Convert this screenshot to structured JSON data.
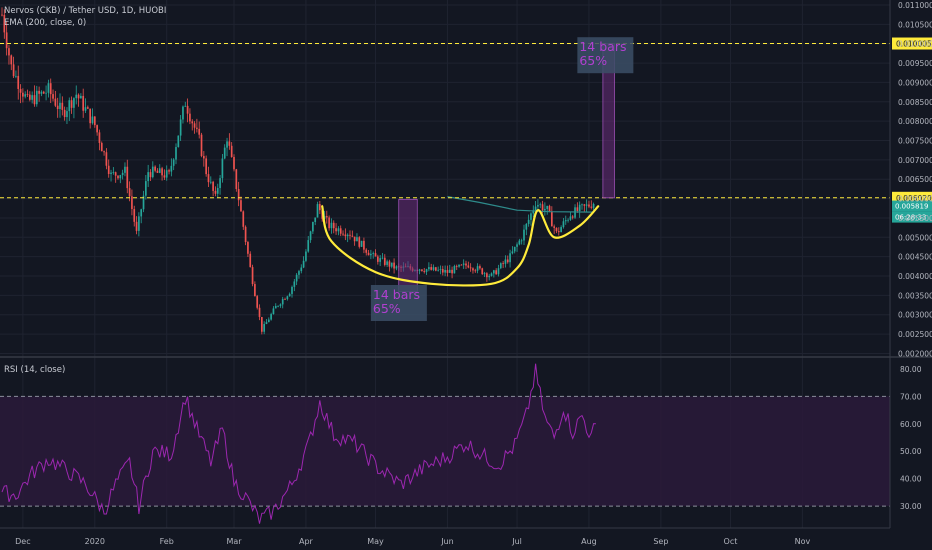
{
  "legend": {
    "symbol": "Nervos (CKB) / Tether USD, 1D, HUOBI",
    "ema": "EMA (200, close, 0)",
    "rsi": "RSI (14, close)"
  },
  "colors": {
    "background": "#131722",
    "grid": "#1f2330",
    "up": "#26a69a",
    "down": "#ef5350",
    "ema": "#2e8b8b",
    "cup_curve": "#ffeb3b",
    "dashed_level": "#ffeb3b",
    "rsi_line": "#9c27b0",
    "rsi_band": "#2a1a3a",
    "projection_fill": "#6a2b7a",
    "label_box": "#3c4f66",
    "label_text": "#b040d0",
    "axis_text": "#b2b5be",
    "price_tag_bg": "#ffeb3b",
    "current_tag_bg": "#26a69a"
  },
  "chart_data": [
    {
      "type": "candlestick",
      "title": "Nervos (CKB) / Tether USD, 1D, HUOBI",
      "x_ticks": [
        "Dec",
        "2020",
        "Feb",
        "Mar",
        "Apr",
        "May",
        "Jun",
        "Jul",
        "Aug",
        "Sep",
        "Oct",
        "Nov"
      ],
      "y_ticks": [
        "0.011000",
        "0.010500",
        "0.010000",
        "0.009500",
        "0.009000",
        "0.008500",
        "0.008000",
        "0.007500",
        "0.007000",
        "0.006500",
        "0.006000",
        "0.005500",
        "0.005000",
        "0.004500",
        "0.004000",
        "0.003500",
        "0.003000",
        "0.002500",
        "0.002000"
      ],
      "ylim": [
        0.00196,
        0.011
      ],
      "price_anchors": [
        {
          "date": "Nov 22",
          "price": 0.01075
        },
        {
          "date": "Nov 26",
          "price": 0.0094
        },
        {
          "date": "Dec 3",
          "price": 0.0085
        },
        {
          "date": "Dec 12",
          "price": 0.0088
        },
        {
          "date": "Dec 18",
          "price": 0.0082
        },
        {
          "date": "Dec 24",
          "price": 0.0087
        },
        {
          "date": "Jan 1",
          "price": 0.0079
        },
        {
          "date": "Jan 8",
          "price": 0.0066
        },
        {
          "date": "Jan 14",
          "price": 0.0067
        },
        {
          "date": "Jan 19",
          "price": 0.0051
        },
        {
          "date": "Jan 24",
          "price": 0.0067
        },
        {
          "date": "Feb 2",
          "price": 0.0066
        },
        {
          "date": "Feb 9",
          "price": 0.0085
        },
        {
          "date": "Feb 15",
          "price": 0.0075
        },
        {
          "date": "Feb 18",
          "price": 0.0067
        },
        {
          "date": "Feb 22",
          "price": 0.006
        },
        {
          "date": "Feb 27",
          "price": 0.0076
        },
        {
          "date": "Mar 3",
          "price": 0.006
        },
        {
          "date": "Mar 8",
          "price": 0.0042
        },
        {
          "date": "Mar 13",
          "price": 0.0026
        },
        {
          "date": "Mar 19",
          "price": 0.0032
        },
        {
          "date": "Mar 25",
          "price": 0.0036
        },
        {
          "date": "Mar 31",
          "price": 0.0044
        },
        {
          "date": "Apr 6",
          "price": 0.0058
        },
        {
          "date": "Apr 11",
          "price": 0.0053
        },
        {
          "date": "Apr 20",
          "price": 0.0051
        },
        {
          "date": "Apr 30",
          "price": 0.0045
        },
        {
          "date": "May 10",
          "price": 0.0042
        },
        {
          "date": "May 20",
          "price": 0.0042
        },
        {
          "date": "Jun 1",
          "price": 0.0041
        },
        {
          "date": "Jun 10",
          "price": 0.0043
        },
        {
          "date": "Jun 20",
          "price": 0.004
        },
        {
          "date": "Jun 28",
          "price": 0.0045
        },
        {
          "date": "Jul 3",
          "price": 0.005
        },
        {
          "date": "Jul 9",
          "price": 0.0059
        },
        {
          "date": "Jul 14",
          "price": 0.0057
        },
        {
          "date": "Jul 18",
          "price": 0.0051
        },
        {
          "date": "Jul 24",
          "price": 0.0056
        },
        {
          "date": "Jul 31",
          "price": 0.0058
        },
        {
          "date": "Aug 3",
          "price": 0.0059
        }
      ],
      "ema200": [
        {
          "date": "Jun 1",
          "price": 0.00605
        },
        {
          "date": "Jun 15",
          "price": 0.0059
        },
        {
          "date": "Jul 1",
          "price": 0.0057
        },
        {
          "date": "Jul 15",
          "price": 0.00566
        },
        {
          "date": "Aug 3",
          "price": 0.00565
        }
      ],
      "levels": [
        {
          "price": 0.010005,
          "label": "0.010005",
          "style": "dashed"
        },
        {
          "price": 0.00602,
          "label": "0.006020",
          "style": "dashed"
        }
      ],
      "current_price_tags": [
        "0.005819",
        "06:28:33"
      ],
      "annotations": [
        {
          "type": "cup_curve",
          "points": [
            {
              "date": "Apr 8",
              "price": 0.0058
            },
            {
              "date": "Apr 12",
              "price": 0.0049
            },
            {
              "date": "May 1",
              "price": 0.0041
            },
            {
              "date": "May 25",
              "price": 0.0038
            },
            {
              "date": "Jun 20",
              "price": 0.0038
            },
            {
              "date": "Jul 1",
              "price": 0.0042
            },
            {
              "date": "Jul 6",
              "price": 0.0048
            },
            {
              "date": "Jul 10",
              "price": 0.0057
            },
            {
              "date": "Jul 17",
              "price": 0.005
            },
            {
              "date": "Jul 28",
              "price": 0.0053
            },
            {
              "date": "Aug 5",
              "price": 0.0058
            }
          ]
        },
        {
          "type": "measure_box",
          "from_date": "May 11",
          "to_date": "May 19",
          "from_price": 0.0036,
          "to_price": 0.00598,
          "text": [
            "14 bars",
            "65%"
          ],
          "label_anchor": {
            "date": "Apr 29",
            "price": 0.0032
          }
        },
        {
          "type": "measure_box",
          "from_date": "Aug 7",
          "to_date": "Aug 12",
          "from_price": 0.00602,
          "to_price": 0.01,
          "text": [
            "14 bars",
            "65%"
          ],
          "label_anchor": {
            "date": "Jul 27",
            "price": 0.0096
          }
        }
      ]
    },
    {
      "type": "line",
      "title": "RSI (14, close)",
      "y_ticks": [
        "80.00",
        "70.00",
        "60.00",
        "50.00",
        "40.00",
        "30.00"
      ],
      "ylim": [
        22,
        84
      ],
      "band": [
        30,
        70
      ],
      "series": [
        {
          "values": [
            {
              "date": "Nov 22",
              "x": 0,
              "y": 35
            },
            {
              "date": "Nov 28",
              "x": 6,
              "y": 34
            },
            {
              "date": "Dec 5",
              "x": 13,
              "y": 42
            },
            {
              "date": "Dec 12",
              "x": 20,
              "y": 47
            },
            {
              "date": "Dec 20",
              "x": 28,
              "y": 43
            },
            {
              "date": "Dec 28",
              "x": 36,
              "y": 38
            },
            {
              "date": "Jan 5",
              "x": 44,
              "y": 28
            },
            {
              "date": "Jan 10",
              "x": 49,
              "y": 38
            },
            {
              "date": "Jan 16",
              "x": 55,
              "y": 46
            },
            {
              "date": "Jan 20",
              "x": 59,
              "y": 30
            },
            {
              "date": "Jan 26",
              "x": 65,
              "y": 50
            },
            {
              "date": "Feb 3",
              "x": 73,
              "y": 49
            },
            {
              "date": "Feb 9",
              "x": 79,
              "y": 70
            },
            {
              "date": "Feb 14",
              "x": 84,
              "y": 58
            },
            {
              "date": "Feb 20",
              "x": 90,
              "y": 46
            },
            {
              "date": "Feb 25",
              "x": 95,
              "y": 58
            },
            {
              "date": "Mar 1",
              "x": 100,
              "y": 39
            },
            {
              "date": "Mar 7",
              "x": 106,
              "y": 32
            },
            {
              "date": "Mar 12",
              "x": 111,
              "y": 25
            },
            {
              "date": "Mar 18",
              "x": 117,
              "y": 28
            },
            {
              "date": "Mar 26",
              "x": 125,
              "y": 38
            },
            {
              "date": "Apr 2",
              "x": 132,
              "y": 52
            },
            {
              "date": "Apr 7",
              "x": 137,
              "y": 68
            },
            {
              "date": "Apr 13",
              "x": 143,
              "y": 56
            },
            {
              "date": "Apr 22",
              "x": 152,
              "y": 53
            },
            {
              "date": "May 2",
              "x": 162,
              "y": 44
            },
            {
              "date": "May 12",
              "x": 172,
              "y": 38
            },
            {
              "date": "May 22",
              "x": 182,
              "y": 44
            },
            {
              "date": "Jun 1",
              "x": 192,
              "y": 48
            },
            {
              "date": "Jun 9",
              "x": 200,
              "y": 53
            },
            {
              "date": "Jun 17",
              "x": 208,
              "y": 48
            },
            {
              "date": "Jun 23",
              "x": 214,
              "y": 45
            },
            {
              "date": "Jun 30",
              "x": 221,
              "y": 52
            },
            {
              "date": "Jul 5",
              "x": 226,
              "y": 63
            },
            {
              "date": "Jul 9",
              "x": 230,
              "y": 79
            },
            {
              "date": "Jul 13",
              "x": 234,
              "y": 62
            },
            {
              "date": "Jul 17",
              "x": 238,
              "y": 55
            },
            {
              "date": "Jul 21",
              "x": 242,
              "y": 66
            },
            {
              "date": "Jul 25",
              "x": 246,
              "y": 57
            },
            {
              "date": "Jul 29",
              "x": 250,
              "y": 63
            },
            {
              "date": "Aug 2",
              "x": 254,
              "y": 55
            },
            {
              "date": "Aug 4",
              "x": 256,
              "y": 60
            }
          ]
        }
      ]
    }
  ]
}
